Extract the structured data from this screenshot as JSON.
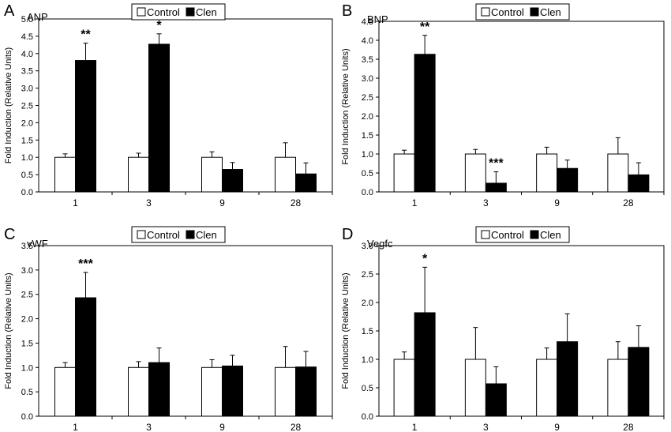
{
  "chart_data": [
    {
      "panel": "A",
      "type": "bar",
      "title": "ANP",
      "ylabel": "Fold Induction (Relative Units)",
      "xlabel": "",
      "categories": [
        "1",
        "3",
        "9",
        "28"
      ],
      "series": [
        {
          "name": "Control",
          "values": [
            1.0,
            1.0,
            1.0,
            1.0
          ],
          "errors": [
            0.1,
            0.12,
            0.16,
            0.42
          ]
        },
        {
          "name": "Clen",
          "values": [
            3.8,
            4.27,
            0.65,
            0.52
          ],
          "errors": [
            0.5,
            0.3,
            0.2,
            0.32
          ]
        }
      ],
      "annotations": [
        {
          "category": "1",
          "series": "Clen",
          "text": "**"
        },
        {
          "category": "3",
          "series": "Clen",
          "text": "*"
        }
      ],
      "ylim": [
        0,
        5.0
      ],
      "yticks": [
        "0.0",
        "0.5",
        "1.0",
        "1.5",
        "2.0",
        "2.5",
        "3.0",
        "3.5",
        "4.0",
        "4.5",
        "5.0"
      ],
      "grid": false,
      "legend": "top-center"
    },
    {
      "panel": "B",
      "type": "bar",
      "title": "BNP",
      "ylabel": "Fold Induction (Relative Units)",
      "xlabel": "",
      "categories": [
        "1",
        "3",
        "9",
        "28"
      ],
      "series": [
        {
          "name": "Control",
          "values": [
            1.0,
            1.0,
            1.0,
            1.0
          ],
          "errors": [
            0.1,
            0.12,
            0.18,
            0.43
          ]
        },
        {
          "name": "Clen",
          "values": [
            3.63,
            0.23,
            0.62,
            0.45
          ],
          "errors": [
            0.5,
            0.3,
            0.22,
            0.32
          ]
        }
      ],
      "annotations": [
        {
          "category": "1",
          "series": "Clen",
          "text": "**"
        },
        {
          "category": "3",
          "series": "Clen",
          "text": "***"
        }
      ],
      "ylim": [
        0,
        4.5
      ],
      "yticks": [
        "0.0",
        "0.5",
        "1.0",
        "1.5",
        "2.0",
        "2.5",
        "3.0",
        "3.5",
        "4.0",
        "4.5"
      ],
      "grid": false,
      "legend": "top-center"
    },
    {
      "panel": "C",
      "type": "bar",
      "title": "vWF",
      "ylabel": "Fold Induction (Relative Units)",
      "xlabel": "",
      "categories": [
        "1",
        "3",
        "9",
        "28"
      ],
      "series": [
        {
          "name": "Control",
          "values": [
            1.0,
            1.0,
            1.0,
            1.0
          ],
          "errors": [
            0.1,
            0.12,
            0.16,
            0.43
          ]
        },
        {
          "name": "Clen",
          "values": [
            2.43,
            1.1,
            1.03,
            1.01
          ],
          "errors": [
            0.52,
            0.3,
            0.22,
            0.32
          ]
        }
      ],
      "annotations": [
        {
          "category": "1",
          "series": "Clen",
          "text": "***"
        }
      ],
      "ylim": [
        0,
        3.5
      ],
      "yticks": [
        "0.0",
        "0.5",
        "1.0",
        "1.5",
        "2.0",
        "2.5",
        "3.0",
        "3.5"
      ],
      "grid": false,
      "legend": "top-center"
    },
    {
      "panel": "D",
      "type": "bar",
      "title": "Vegfc",
      "ylabel": "Fold Induction (Relative Units)",
      "xlabel": "",
      "categories": [
        "1",
        "3",
        "9",
        "28"
      ],
      "series": [
        {
          "name": "Control",
          "values": [
            1.0,
            1.0,
            1.0,
            1.0
          ],
          "errors": [
            0.13,
            0.56,
            0.2,
            0.31
          ]
        },
        {
          "name": "Clen",
          "values": [
            1.82,
            0.57,
            1.31,
            1.21
          ],
          "errors": [
            0.8,
            0.3,
            0.49,
            0.38
          ]
        }
      ],
      "annotations": [
        {
          "category": "1",
          "series": "Clen",
          "text": "*"
        }
      ],
      "ylim": [
        0,
        3.0
      ],
      "yticks": [
        "0.0",
        "0.5",
        "1.0",
        "1.5",
        "2.0",
        "2.5",
        "3.0"
      ],
      "grid": false,
      "legend": "top-center"
    }
  ],
  "colors": {
    "control_fill": "#ffffff",
    "clen_fill": "#000000",
    "axis": "#000000"
  }
}
